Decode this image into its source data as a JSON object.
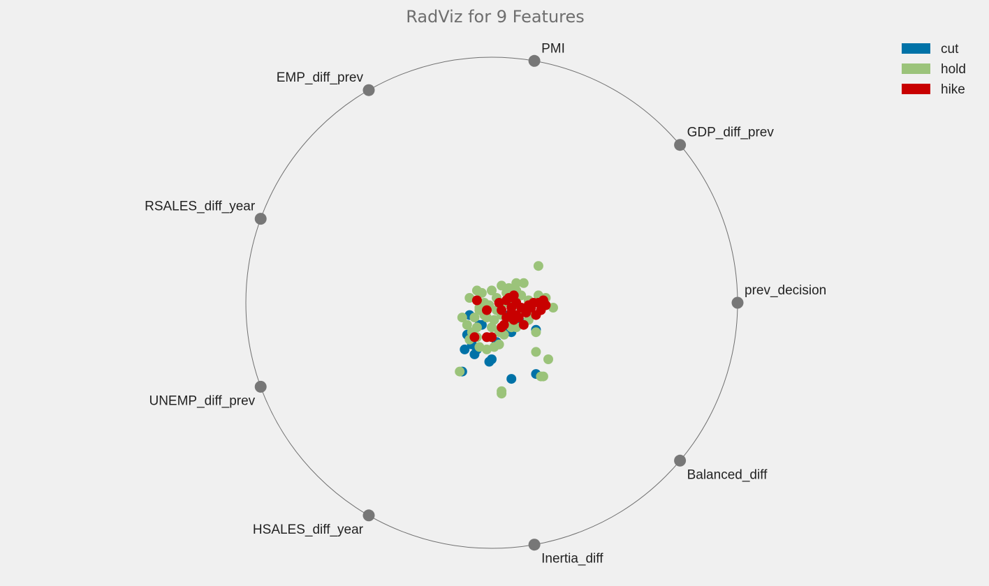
{
  "chart_data": {
    "type": "scatter",
    "subtype": "radviz",
    "title": "RadViz for 9 Features",
    "anchors": [
      "prev_decision",
      "GDP_diff_prev",
      "PMI",
      "EMP_diff_prev",
      "RSALES_diff_year",
      "UNEMP_diff_prev",
      "HSALES_diff_year",
      "Inertia_diff",
      "Balanced_diff"
    ],
    "axis_range": {
      "x": [
        -1,
        1
      ],
      "y": [
        -1,
        1
      ]
    },
    "grid": false,
    "legend_position": "top-right",
    "series": [
      {
        "name": "cut",
        "color": "#0072a7",
        "points": [
          [
            -0.09,
            -0.05
          ],
          [
            -0.05,
            -0.09
          ],
          [
            -0.11,
            -0.19
          ],
          [
            -0.07,
            -0.21
          ],
          [
            -0.06,
            -0.19
          ],
          [
            -0.08,
            -0.17
          ],
          [
            0.02,
            -0.16
          ],
          [
            -0.01,
            -0.24
          ],
          [
            0.0,
            -0.23
          ],
          [
            0.08,
            -0.12
          ],
          [
            0.18,
            -0.11
          ],
          [
            0.18,
            -0.29
          ],
          [
            0.08,
            -0.31
          ],
          [
            -0.12,
            -0.28
          ],
          [
            0.1,
            -0.07
          ],
          [
            -0.04,
            -0.09
          ],
          [
            0.05,
            -0.1
          ],
          [
            0.12,
            -0.08
          ],
          [
            -0.1,
            -0.13
          ],
          [
            0.07,
            -0.05
          ]
        ]
      },
      {
        "name": "hold",
        "color": "#9bc37a",
        "points": [
          [
            0.19,
            0.15
          ],
          [
            0.1,
            0.08
          ],
          [
            0.13,
            0.08
          ],
          [
            0.04,
            0.07
          ],
          [
            0.0,
            0.05
          ],
          [
            -0.06,
            0.05
          ],
          [
            -0.05,
            -0.02
          ],
          [
            -0.09,
            0.02
          ],
          [
            -0.04,
            0.04
          ],
          [
            -0.12,
            -0.06
          ],
          [
            -0.1,
            -0.09
          ],
          [
            -0.08,
            -0.12
          ],
          [
            -0.06,
            -0.14
          ],
          [
            -0.09,
            -0.15
          ],
          [
            -0.05,
            -0.18
          ],
          [
            -0.02,
            -0.19
          ],
          [
            0.01,
            -0.18
          ],
          [
            0.03,
            -0.17
          ],
          [
            0.05,
            -0.13
          ],
          [
            0.08,
            -0.1
          ],
          [
            0.1,
            -0.1
          ],
          [
            0.18,
            -0.12
          ],
          [
            0.18,
            -0.2
          ],
          [
            0.23,
            -0.23
          ],
          [
            0.21,
            -0.3
          ],
          [
            0.2,
            -0.3
          ],
          [
            0.04,
            -0.36
          ],
          [
            0.04,
            -0.37
          ],
          [
            -0.13,
            -0.28
          ],
          [
            0.25,
            -0.02
          ],
          [
            0.22,
            0.02
          ],
          [
            0.19,
            0.03
          ],
          [
            0.15,
            0.01
          ],
          [
            0.09,
            0.02
          ],
          [
            0.05,
            0.0
          ],
          [
            0.02,
            -0.03
          ],
          [
            -0.02,
            -0.06
          ],
          [
            -0.07,
            -0.06
          ],
          [
            -0.05,
            -0.03
          ],
          [
            -0.01,
            -0.01
          ],
          [
            0.04,
            -0.05
          ],
          [
            0.07,
            -0.07
          ],
          [
            0.11,
            -0.06
          ],
          [
            0.15,
            -0.07
          ],
          [
            0.13,
            -0.03
          ],
          [
            0.09,
            -0.01
          ],
          [
            0.06,
            0.04
          ],
          [
            0.02,
            0.02
          ],
          [
            -0.03,
            0.0
          ],
          [
            0.0,
            -0.1
          ],
          [
            0.03,
            -0.12
          ],
          [
            -0.02,
            -0.14
          ],
          [
            0.12,
            0.03
          ],
          [
            0.16,
            -0.04
          ],
          [
            0.2,
            -0.01
          ],
          [
            0.07,
            0.06
          ],
          [
            -0.03,
            -0.05
          ],
          [
            0.01,
            -0.07
          ],
          [
            -0.06,
            -0.1
          ],
          [
            0.1,
            0.05
          ]
        ]
      },
      {
        "name": "hike",
        "color": "#c80000",
        "points": [
          [
            0.07,
            0.02
          ],
          [
            0.09,
            0.03
          ],
          [
            0.1,
            0.0
          ],
          [
            0.08,
            -0.04
          ],
          [
            0.11,
            -0.06
          ],
          [
            0.15,
            -0.01
          ],
          [
            0.16,
            -0.02
          ],
          [
            0.19,
            0.0
          ],
          [
            0.21,
            0.01
          ],
          [
            0.22,
            -0.01
          ],
          [
            0.2,
            -0.03
          ],
          [
            0.18,
            -0.05
          ],
          [
            0.14,
            -0.04
          ],
          [
            0.13,
            -0.09
          ],
          [
            0.06,
            -0.06
          ],
          [
            0.05,
            -0.09
          ],
          [
            0.09,
            -0.07
          ],
          [
            0.04,
            -0.03
          ],
          [
            0.03,
            0.0
          ],
          [
            0.06,
            0.01
          ],
          [
            0.08,
            -0.02
          ],
          [
            0.12,
            -0.02
          ],
          [
            0.17,
            0.0
          ],
          [
            -0.02,
            -0.03
          ],
          [
            -0.02,
            -0.14
          ],
          [
            0.04,
            -0.1
          ],
          [
            -0.06,
            0.01
          ],
          [
            -0.07,
            -0.14
          ],
          [
            0.0,
            -0.14
          ],
          [
            0.1,
            -0.05
          ]
        ]
      }
    ]
  }
}
